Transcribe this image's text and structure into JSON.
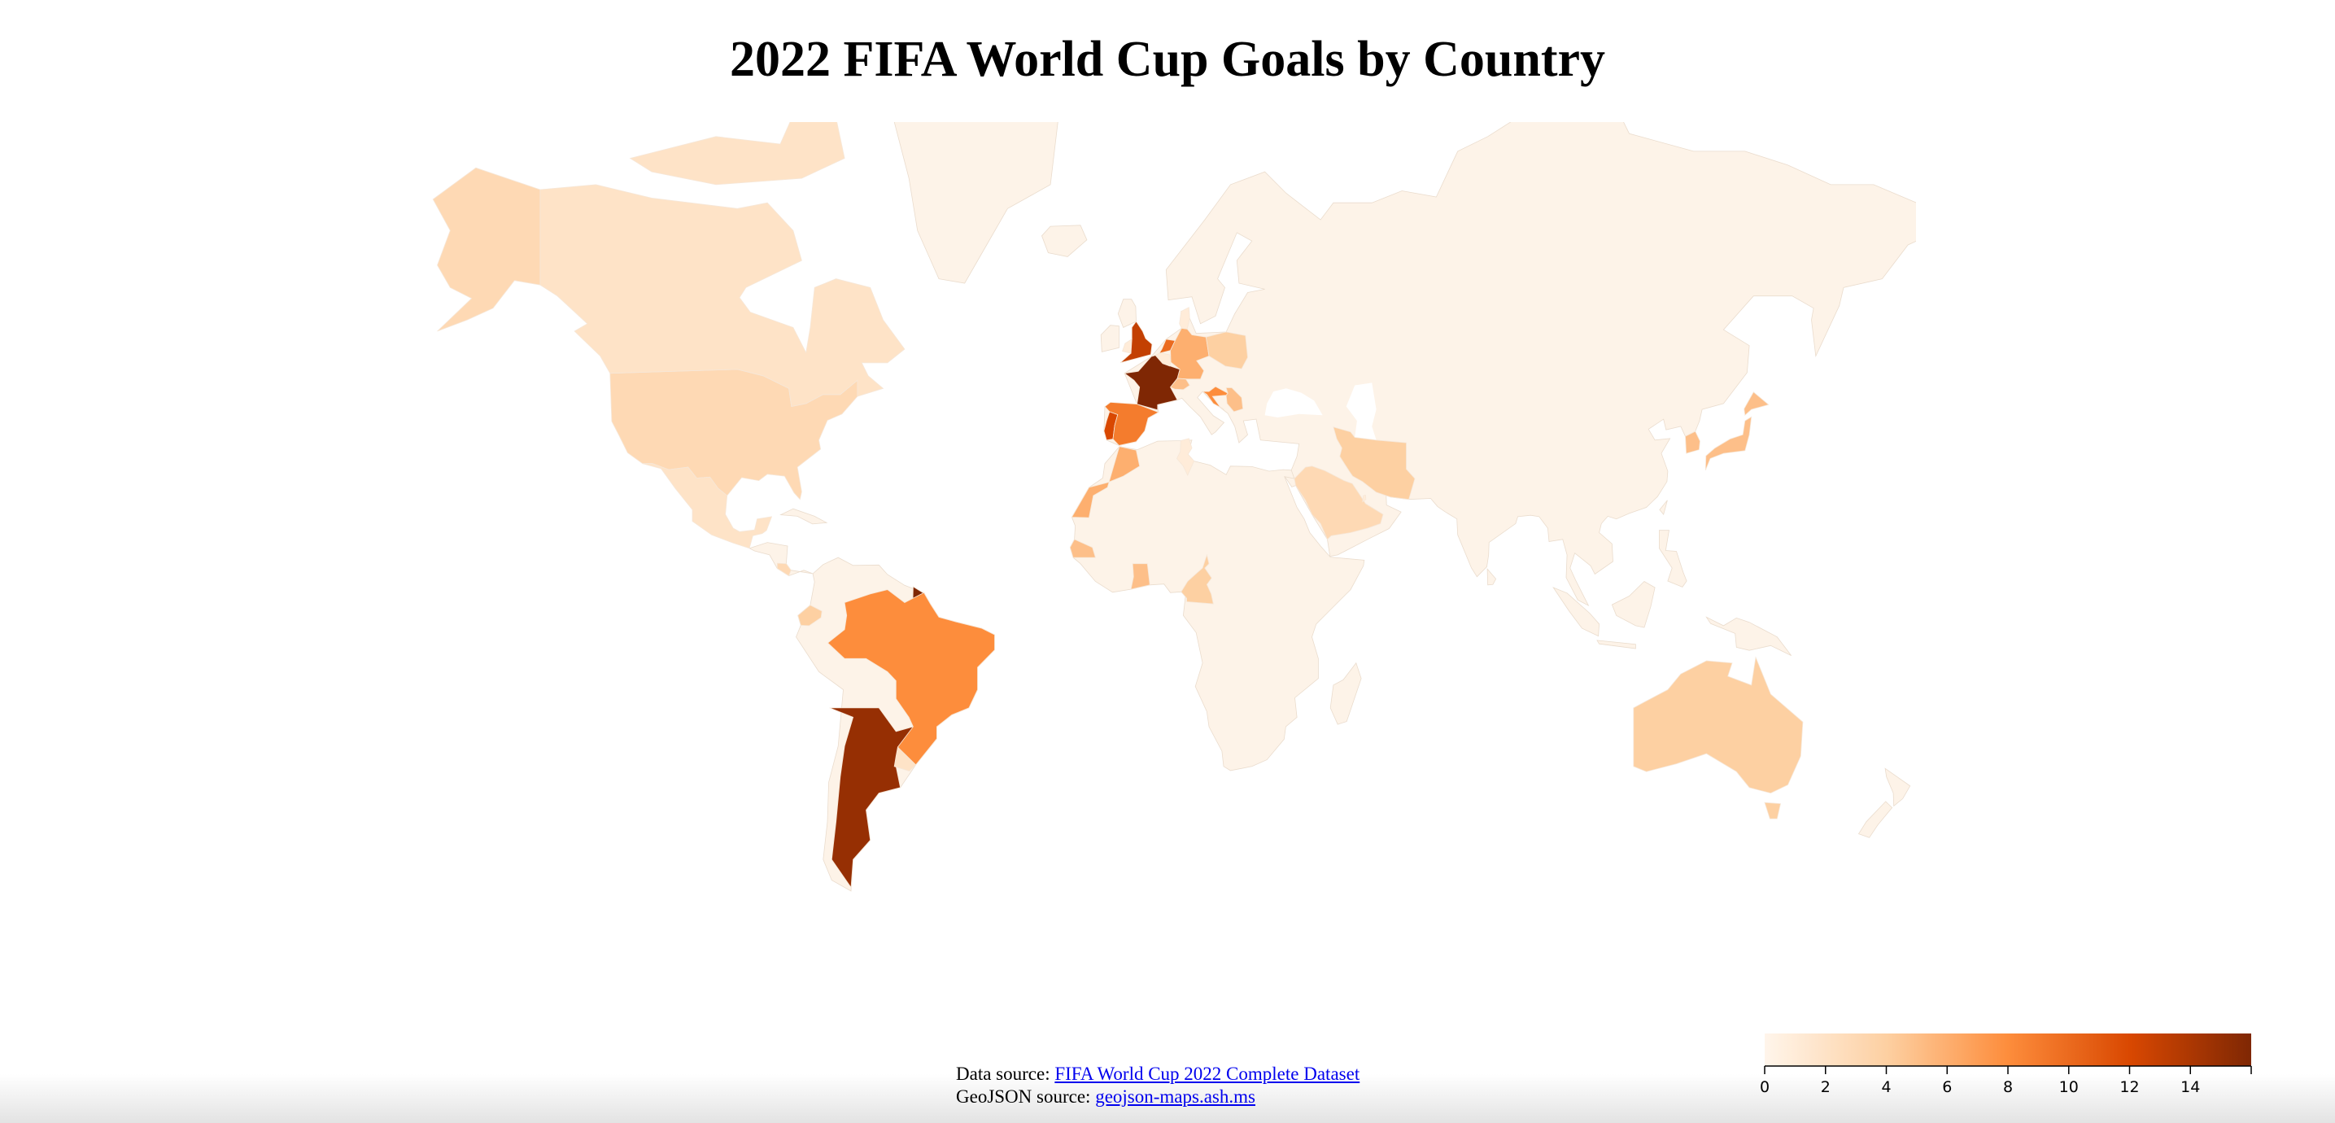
{
  "title": "2022 FIFA World Cup Goals by Country",
  "map": {
    "type": "choropleth",
    "values": [
      15,
      16,
      13,
      12,
      10,
      9,
      8,
      8,
      6,
      6,
      5,
      5,
      5,
      5,
      5,
      5,
      4,
      4,
      4,
      4,
      4,
      3,
      3,
      3,
      2,
      2,
      2,
      1,
      1,
      1,
      1,
      1
    ],
    "legend": {
      "lim": [
        0,
        16
      ],
      "ticks": [
        0,
        2,
        4,
        6,
        8,
        10,
        12,
        14
      ]
    }
  },
  "footer": {
    "lines": [
      {
        "label": "Data source:",
        "link": "FIFA World Cup 2022 Complete Dataset"
      },
      {
        "label": "GeoJSON source:",
        "link": "geojson-maps.ash.ms"
      }
    ]
  }
}
